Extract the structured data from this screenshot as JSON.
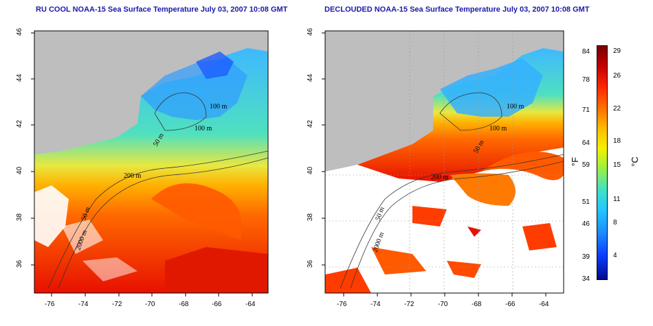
{
  "titles": {
    "left": "RU COOL NOAA-15 Sea Surface Temperature July 03, 2007 10:08 GMT",
    "right": "DECLOUDED NOAA-15 Sea Surface Temperature July 03, 2007 10:08 GMT"
  },
  "lat_ticks": [
    "46",
    "44",
    "42",
    "40",
    "38",
    "36"
  ],
  "lon_ticks": [
    "-76",
    "-74",
    "-72",
    "-70",
    "-68",
    "-66",
    "-64"
  ],
  "contour_labels": {
    "left": [
      "100 m",
      "100 m",
      "50 m",
      "200 m",
      "50 m",
      "2000 m"
    ],
    "right": [
      "100 m",
      "100 m",
      "50 m",
      "200 m",
      "50 m",
      "2000 m"
    ]
  },
  "colorbar": {
    "fahrenheit_label": "°F",
    "celsius_label": "°C",
    "fahrenheit_ticks": [
      "84",
      "78",
      "71",
      "64",
      "59",
      "51",
      "46",
      "39",
      "34"
    ],
    "celsius_ticks": [
      "29",
      "26",
      "22",
      "18",
      "15",
      "11",
      "8",
      "4"
    ]
  },
  "colors": {
    "land": "#bebebe",
    "cloud": "#ffffff",
    "title": "#1a1aa8"
  }
}
